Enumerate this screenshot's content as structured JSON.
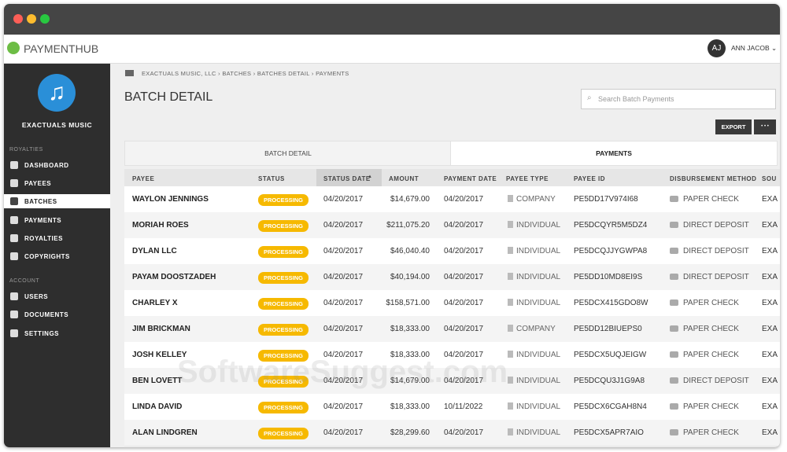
{
  "header": {
    "logo": "PAYMENTHUB",
    "avatar": "AJ",
    "user": "ANN JACOB"
  },
  "sidebar": {
    "org": "EXACTUALS MUSIC",
    "sections": [
      {
        "label": "ROYALTIES",
        "items": [
          "DASHBOARD",
          "PAYEES",
          "BATCHES",
          "PAYMENTS",
          "ROYALTIES",
          "COPYRIGHTS"
        ]
      },
      {
        "label": "ACCOUNT",
        "items": [
          "USERS",
          "DOCUMENTS",
          "SETTINGS"
        ]
      }
    ],
    "active": "BATCHES"
  },
  "breadcrumb": [
    "EXACTUALS MUSIC, LLC",
    "BATCHES",
    "BATCHES DETAIL",
    "PAYMENTS"
  ],
  "page": {
    "title": "BATCH DETAIL",
    "search_placeholder": "Search Batch Payments",
    "export": "EXPORT",
    "more": "• • •"
  },
  "tabs": [
    "BATCH DETAIL",
    "PAYMENTS"
  ],
  "table": {
    "headers": [
      "PAYEE",
      "STATUS",
      "STATUS DATE",
      "AMOUNT",
      "PAYMENT DATE",
      "PAYEE TYPE",
      "PAYEE ID",
      "DISBURSEMENT METHOD",
      "SOU"
    ],
    "rows": [
      [
        "WAYLON JENNINGS",
        "PROCESSING",
        "04/20/2017",
        "$14,679.00",
        "04/20/2017",
        "COMPANY",
        "PE5DD17V974I68",
        "PAPER CHECK",
        "EXA"
      ],
      [
        "MORIAH ROES",
        "PROCESSING",
        "04/20/2017",
        "$211,075.20",
        "04/20/2017",
        "INDIVIDUAL",
        "PE5DCQYR5M5DZ4",
        "DIRECT DEPOSIT",
        "EXA"
      ],
      [
        "DYLAN LLC",
        "PROCESSING",
        "04/20/2017",
        "$46,040.40",
        "04/20/2017",
        "INDIVIDUAL",
        "PE5DCQJJYGWPA8",
        "DIRECT DEPOSIT",
        "EXA"
      ],
      [
        "PAYAM DOOSTZADEH",
        "PROCESSING",
        "04/20/2017",
        "$40,194.00",
        "04/20/2017",
        "INDIVIDUAL",
        "PE5DD10MD8EI9S",
        "DIRECT DEPOSIT",
        "EXA"
      ],
      [
        "CHARLEY X",
        "PROCESSING",
        "04/20/2017",
        "$158,571.00",
        "04/20/2017",
        "INDIVIDUAL",
        "PE5DCX415GDO8W",
        "PAPER CHECK",
        "EXA"
      ],
      [
        "JIM BRICKMAN",
        "PROCESSING",
        "04/20/2017",
        "$18,333.00",
        "04/20/2017",
        "COMPANY",
        "PE5DD12BIUEPS0",
        "PAPER CHECK",
        "EXA"
      ],
      [
        "JOSH KELLEY",
        "PROCESSING",
        "04/20/2017",
        "$18,333.00",
        "04/20/2017",
        "INDIVIDUAL",
        "PE5DCX5UQJEIGW",
        "PAPER CHECK",
        "EXA"
      ],
      [
        "BEN LOVETT",
        "PROCESSING",
        "04/20/2017",
        "$14,679.00",
        "04/20/2017",
        "INDIVIDUAL",
        "PE5DCQU3J1G9A8",
        "DIRECT DEPOSIT",
        "EXA"
      ],
      [
        "LINDA DAVID",
        "PROCESSING",
        "04/20/2017",
        "$18,333.00",
        "10/11/2022",
        "INDIVIDUAL",
        "PE5DCX6CGAH8N4",
        "PAPER CHECK",
        "EXA"
      ],
      [
        "ALAN LINDGREN",
        "PROCESSING",
        "04/20/2017",
        "$28,299.60",
        "04/20/2017",
        "INDIVIDUAL",
        "PE5DCX5APR7AIO",
        "PAPER CHECK",
        "EXA"
      ]
    ]
  },
  "watermark": "SoftwareSuggest.com"
}
